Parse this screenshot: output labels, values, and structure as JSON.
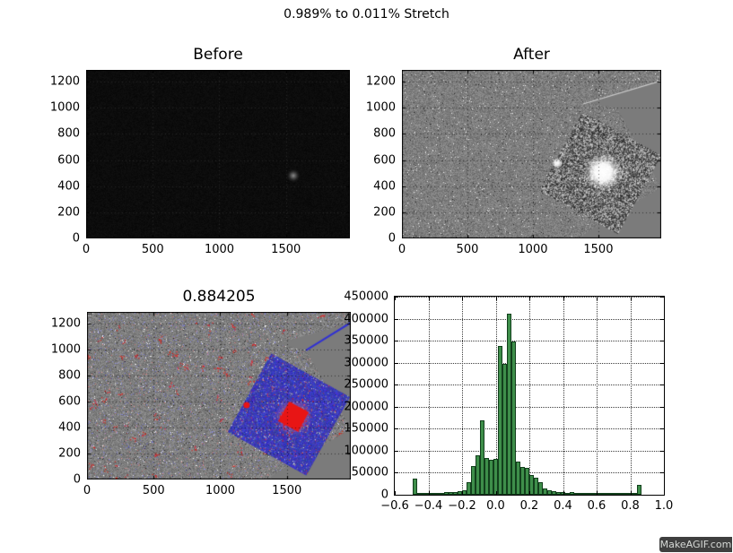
{
  "figure": {
    "suptitle": "0.989% to 0.011% Stretch",
    "watermark": "MakeAGIF.com",
    "background": "#ffffff",
    "text_color": "#000000"
  },
  "colors": {
    "bar_fill": "#3e8e4a",
    "bar_edge": "#123f1c",
    "noise_flat_gray": "#7b7b7b",
    "blue_patch": "#2222cc",
    "red_marker": "#e81515",
    "before_black": "#0b0b0b",
    "watermark_bg": "#3f3f3f",
    "watermark_text": "#d6d9d6"
  },
  "panels": {
    "before": {
      "title": "Before",
      "xtick_labels": [
        "0",
        "500",
        "1000",
        "1500"
      ],
      "ytick_labels": [
        "0",
        "200",
        "400",
        "600",
        "800",
        "1000",
        "1200"
      ],
      "xtick_values": [
        0,
        500,
        1000,
        1500
      ],
      "ytick_values": [
        0,
        200,
        400,
        600,
        800,
        1000,
        1200
      ],
      "xlim": [
        0,
        1980
      ],
      "ylim": [
        0,
        1290
      ]
    },
    "after": {
      "title": "After",
      "xtick_labels": [
        "0",
        "500",
        "1000",
        "1500"
      ],
      "ytick_labels": [
        "0",
        "200",
        "400",
        "600",
        "800",
        "1000",
        "1200"
      ],
      "xtick_values": [
        0,
        500,
        1000,
        1500
      ],
      "ytick_values": [
        0,
        200,
        400,
        600,
        800,
        1000,
        1200
      ],
      "xlim": [
        0,
        1980
      ],
      "ylim": [
        0,
        1290
      ]
    },
    "ratio": {
      "title": "0.884205",
      "xtick_labels": [
        "0",
        "500",
        "1000",
        "1500"
      ],
      "ytick_labels": [
        "0",
        "200",
        "400",
        "600",
        "800",
        "1000",
        "1200"
      ],
      "xtick_values": [
        0,
        500,
        1000,
        1500
      ],
      "ytick_values": [
        0,
        200,
        400,
        600,
        800,
        1000,
        1200
      ],
      "xlim": [
        0,
        1980
      ],
      "ylim": [
        0,
        1290
      ]
    },
    "histogram": {
      "title": "",
      "xtick_labels": [
        "−0.6",
        "−0.4",
        "−0.2",
        "0.0",
        "0.2",
        "0.4",
        "0.6",
        "0.8",
        "1.0"
      ],
      "ytick_labels": [
        "0",
        "50000",
        "100000",
        "150000",
        "200000",
        "250000",
        "300000",
        "350000",
        "400000",
        "450000"
      ],
      "xtick_values": [
        -0.6,
        -0.4,
        -0.2,
        0.0,
        0.2,
        0.4,
        0.6,
        0.8,
        1.0
      ],
      "ytick_values": [
        0,
        50000,
        100000,
        150000,
        200000,
        250000,
        300000,
        350000,
        400000,
        450000
      ],
      "xlim": [
        -0.6,
        1.0
      ],
      "ylim": [
        0,
        450000
      ]
    }
  },
  "chart_data": [
    {
      "type": "heatmap",
      "title": "Before",
      "xlabel": "",
      "ylabel": "",
      "xlim": [
        0,
        1980
      ],
      "ylim": [
        0,
        1290
      ],
      "xticks": [
        0,
        500,
        1000,
        1500
      ],
      "yticks": [
        0,
        200,
        400,
        600,
        800,
        1000,
        1200
      ],
      "grid": "dotted",
      "description": "Nearly black astronomical frame before stretch; single faint gray star visible near data coords (1560, 500)."
    },
    {
      "type": "heatmap",
      "title": "After",
      "xlabel": "",
      "ylabel": "",
      "xlim": [
        0,
        1980
      ],
      "ylim": [
        0,
        1290
      ],
      "xticks": [
        0,
        500,
        1000,
        1500
      ],
      "yticks": [
        0,
        200,
        400,
        600,
        800,
        1000,
        1200
      ],
      "grid": "dotted",
      "description": "Same frame after 0.989%-0.011% stretch: mid-gray noise field; rotated (~29deg) high-contrast noisy square patch on right half; saturated white star blob near (1550,490); small white star near (1200,560); smooth flat-gray wedge regions at top-right and bottom-right corners separated by a bright diagonal seam."
    },
    {
      "type": "heatmap",
      "title": "0.884205",
      "xlabel": "",
      "ylabel": "",
      "xlim": [
        0,
        1980
      ],
      "ylim": [
        0,
        1290
      ],
      "xticks": [
        0,
        500,
        1000,
        1500
      ],
      "yticks": [
        0,
        200,
        400,
        600,
        800,
        1000,
        1200
      ],
      "grid": "dotted",
      "description": "Difference/correlation view (score 0.884205): gray noise with scattered small red residual clusters; the rotated square patch rendered in blue noise with red speckles; solid red saturated core near (1550,490); small red spot near (1200,560); flat gray wedges in right corners with a blue diagonal seam."
    },
    {
      "type": "bar",
      "title": "",
      "xlabel": "",
      "ylabel": "",
      "xlim": [
        -0.6,
        1.0
      ],
      "ylim": [
        0,
        450000
      ],
      "xticks": [
        -0.6,
        -0.4,
        -0.2,
        0.0,
        0.2,
        0.4,
        0.6,
        0.8,
        1.0
      ],
      "yticks": [
        0,
        50000,
        100000,
        150000,
        200000,
        250000,
        300000,
        350000,
        400000,
        450000
      ],
      "grid": "dotted",
      "legend": null,
      "bin_start": -0.6,
      "bin_width": 0.0266667,
      "values": [
        0,
        0,
        0,
        0,
        36000,
        4000,
        4000,
        4000,
        4500,
        4500,
        5000,
        5500,
        6000,
        7000,
        8500,
        10000,
        28000,
        66000,
        89000,
        170000,
        83000,
        79000,
        81000,
        338000,
        297000,
        411000,
        348000,
        75000,
        64000,
        61000,
        45000,
        38000,
        28000,
        15000,
        10000,
        7500,
        6000,
        5500,
        5000,
        5500,
        4000,
        4000,
        3500,
        3500,
        3500,
        3000,
        2500,
        2000,
        1500,
        1500,
        1500,
        1500,
        1500,
        1000,
        22000,
        0,
        0,
        0,
        0,
        0
      ]
    }
  ]
}
